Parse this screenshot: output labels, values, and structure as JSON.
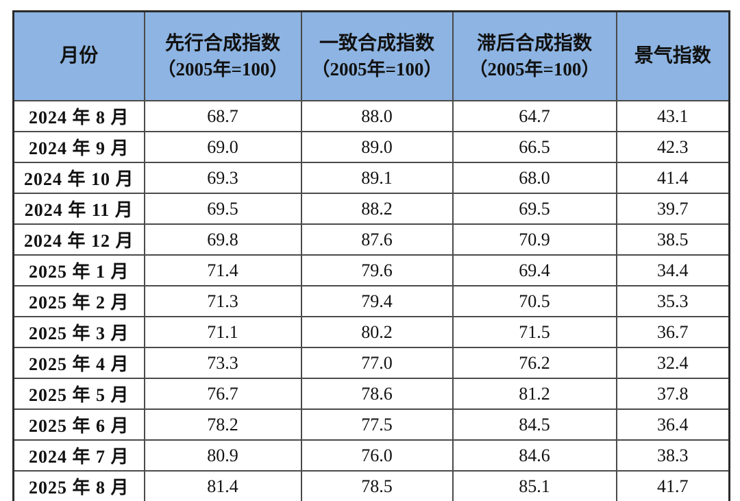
{
  "colors": {
    "header_bg": "#8DB4E2",
    "border_outer": "#2a2a2a",
    "border_inner": "#4a4a4a",
    "text": "#111111",
    "page_bg": "#ffffff"
  },
  "table": {
    "headers": [
      {
        "line1": "月份",
        "line2": ""
      },
      {
        "line1": "先行合成指数",
        "line2": "（2005年=100）"
      },
      {
        "line1": "一致合成指数",
        "line2": "（2005年=100）"
      },
      {
        "line1": "滞后合成指数",
        "line2": "（2005年=100）"
      },
      {
        "line1": "景气指数",
        "line2": ""
      }
    ],
    "rows": [
      {
        "month": "2024 年 8 月",
        "leading": "68.7",
        "coincident": "88.0",
        "lagging": "64.7",
        "prosperity": "43.1"
      },
      {
        "month": "2024 年 9 月",
        "leading": "69.0",
        "coincident": "89.0",
        "lagging": "66.5",
        "prosperity": "42.3"
      },
      {
        "month": "2024 年 10 月",
        "leading": "69.3",
        "coincident": "89.1",
        "lagging": "68.0",
        "prosperity": "41.4"
      },
      {
        "month": "2024 年 11 月",
        "leading": "69.5",
        "coincident": "88.2",
        "lagging": "69.5",
        "prosperity": "39.7"
      },
      {
        "month": "2024 年 12 月",
        "leading": "69.8",
        "coincident": "87.6",
        "lagging": "70.9",
        "prosperity": "38.5"
      },
      {
        "month": "2025 年 1 月",
        "leading": "71.4",
        "coincident": "79.6",
        "lagging": "69.4",
        "prosperity": "34.4"
      },
      {
        "month": "2025 年 2 月",
        "leading": "71.3",
        "coincident": "79.4",
        "lagging": "70.5",
        "prosperity": "35.3"
      },
      {
        "month": "2025 年 3 月",
        "leading": "71.1",
        "coincident": "80.2",
        "lagging": "71.5",
        "prosperity": "36.7"
      },
      {
        "month": "2025 年 4 月",
        "leading": "73.3",
        "coincident": "77.0",
        "lagging": "76.2",
        "prosperity": "32.4"
      },
      {
        "month": "2025 年 5 月",
        "leading": "76.7",
        "coincident": "78.6",
        "lagging": "81.2",
        "prosperity": "37.8"
      },
      {
        "month": "2025 年 6 月",
        "leading": "78.2",
        "coincident": "77.5",
        "lagging": "84.5",
        "prosperity": "36.4"
      },
      {
        "month": "2024 年 7 月",
        "leading": "80.9",
        "coincident": "76.0",
        "lagging": "84.6",
        "prosperity": "38.3"
      },
      {
        "month": "2025 年 8 月",
        "leading": "81.4",
        "coincident": "78.5",
        "lagging": "85.1",
        "prosperity": "41.7"
      }
    ]
  },
  "chart_data": {
    "type": "table",
    "title": "",
    "columns": [
      "月份",
      "先行合成指数（2005年=100）",
      "一致合成指数（2005年=100）",
      "滞后合成指数（2005年=100）",
      "景气指数"
    ],
    "categories": [
      "2024年8月",
      "2024年9月",
      "2024年10月",
      "2024年11月",
      "2024年12月",
      "2025年1月",
      "2025年2月",
      "2025年3月",
      "2025年4月",
      "2025年5月",
      "2025年6月",
      "2024年7月",
      "2025年8月"
    ],
    "series": [
      {
        "name": "先行合成指数（2005年=100）",
        "values": [
          68.7,
          69.0,
          69.3,
          69.5,
          69.8,
          71.4,
          71.3,
          71.1,
          73.3,
          76.7,
          78.2,
          80.9,
          81.4
        ]
      },
      {
        "name": "一致合成指数（2005年=100）",
        "values": [
          88.0,
          89.0,
          89.1,
          88.2,
          87.6,
          79.6,
          79.4,
          80.2,
          77.0,
          78.6,
          77.5,
          76.0,
          78.5
        ]
      },
      {
        "name": "滞后合成指数（2005年=100）",
        "values": [
          64.7,
          66.5,
          68.0,
          69.5,
          70.9,
          69.4,
          70.5,
          71.5,
          76.2,
          81.2,
          84.5,
          84.6,
          85.1
        ]
      },
      {
        "name": "景气指数",
        "values": [
          43.1,
          42.3,
          41.4,
          39.7,
          38.5,
          34.4,
          35.3,
          36.7,
          32.4,
          37.8,
          36.4,
          38.3,
          41.7
        ]
      }
    ]
  }
}
